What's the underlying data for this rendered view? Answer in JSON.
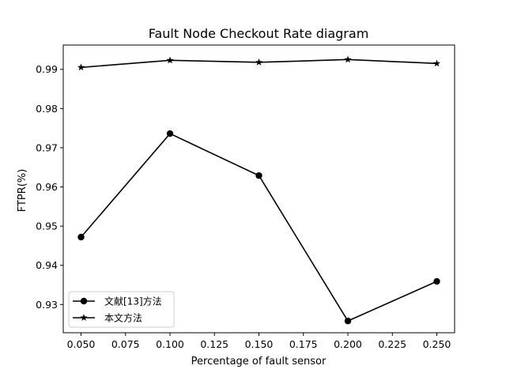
{
  "chart_data": {
    "type": "line",
    "title": "Fault Node Checkout Rate diagram",
    "xlabel": "Percentage of fault sensor",
    "ylabel": "FTPR(%)",
    "x": [
      0.05,
      0.1,
      0.15,
      0.2,
      0.25
    ],
    "xlim": [
      0.04,
      0.26
    ],
    "ylim": [
      0.9228,
      0.9962
    ],
    "xticks": [
      "0.050",
      "0.075",
      "0.100",
      "0.125",
      "0.150",
      "0.175",
      "0.200",
      "0.225",
      "0.250"
    ],
    "yticks": [
      "0.93",
      "0.94",
      "0.95",
      "0.96",
      "0.97",
      "0.98",
      "0.99"
    ],
    "grid": false,
    "legend_position": "lower-left",
    "series": [
      {
        "name": "文献[13]方法",
        "values": [
          0.9472,
          0.9736,
          0.9629,
          0.9258,
          0.9359
        ],
        "marker": "circle",
        "color": "#000000"
      },
      {
        "name": "本文方法",
        "values": [
          0.9905,
          0.9923,
          0.9918,
          0.9925,
          0.9915
        ],
        "marker": "star",
        "color": "#000000"
      }
    ]
  }
}
